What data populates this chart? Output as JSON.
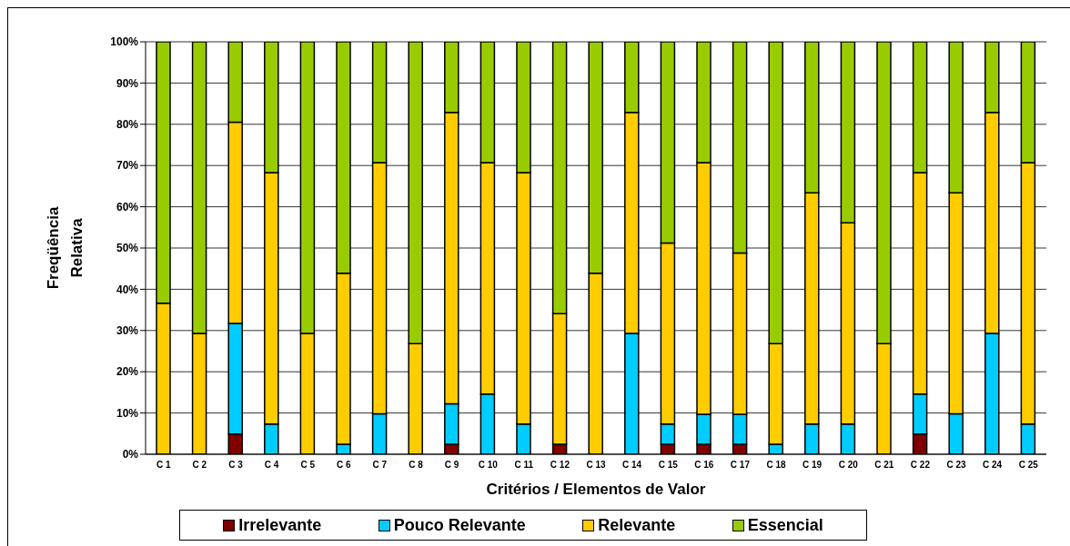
{
  "chart_data": {
    "type": "bar",
    "stacked": true,
    "xlabel": "Critérios / Elementos de Valor",
    "ylabel": "Freqüência Relativa",
    "categories": [
      "C 1",
      "C 2",
      "C 3",
      "C 4",
      "C 5",
      "C 6",
      "C 7",
      "C 8",
      "C 9",
      "C 10",
      "C 11",
      "C 12",
      "C 13",
      "C 14",
      "C 15",
      "C 16",
      "C 17",
      "C 18",
      "C 19",
      "C 20",
      "C 21",
      "C 22",
      "C 23",
      "C 24",
      "C 25"
    ],
    "series": [
      {
        "name": "Irrelevante",
        "color": "#800000",
        "values": [
          0,
          0,
          4.9,
          0,
          0,
          0,
          0,
          0,
          2.4,
          0,
          0,
          2.4,
          0,
          0,
          2.4,
          2.4,
          2.4,
          0,
          0,
          0,
          0,
          4.9,
          0,
          0,
          0
        ]
      },
      {
        "name": "Pouco Relevante",
        "color": "#00ccff",
        "values": [
          0,
          0,
          26.8,
          7.3,
          0,
          2.4,
          9.8,
          0,
          9.8,
          14.6,
          7.3,
          0,
          0,
          29.3,
          4.9,
          7.3,
          7.3,
          2.4,
          7.3,
          7.3,
          0,
          9.7,
          9.8,
          29.3,
          7.3
        ]
      },
      {
        "name": "Relevante",
        "color": "#ffcc00",
        "values": [
          36.6,
          29.3,
          48.8,
          61.0,
          29.3,
          41.5,
          60.9,
          26.8,
          70.7,
          56.1,
          61.0,
          31.7,
          43.9,
          53.6,
          43.9,
          61.0,
          39.1,
          24.4,
          56.1,
          48.8,
          26.8,
          53.7,
          53.6,
          53.6,
          63.4
        ]
      },
      {
        "name": "Essencial",
        "color": "#99cc00",
        "values": [
          63.4,
          70.7,
          19.5,
          31.7,
          70.7,
          56.1,
          29.3,
          73.2,
          17.1,
          29.3,
          31.7,
          65.9,
          56.1,
          17.1,
          48.8,
          29.3,
          51.2,
          73.2,
          36.6,
          43.9,
          73.2,
          31.7,
          36.6,
          17.1,
          29.3
        ]
      }
    ],
    "ylim": [
      0,
      100
    ],
    "yticks": [
      {
        "value": 0,
        "label": "0%"
      },
      {
        "value": 10,
        "label": "10%"
      },
      {
        "value": 20,
        "label": "20%"
      },
      {
        "value": 30,
        "label": "30%"
      },
      {
        "value": 40,
        "label": "40%"
      },
      {
        "value": 50,
        "label": "50%"
      },
      {
        "value": 60,
        "label": "60%"
      },
      {
        "value": 70,
        "label": "70%"
      },
      {
        "value": 80,
        "label": "80%"
      },
      {
        "value": 90,
        "label": "90%"
      },
      {
        "value": 100,
        "label": "100%"
      }
    ],
    "grid": "y",
    "legend": "bottom"
  }
}
